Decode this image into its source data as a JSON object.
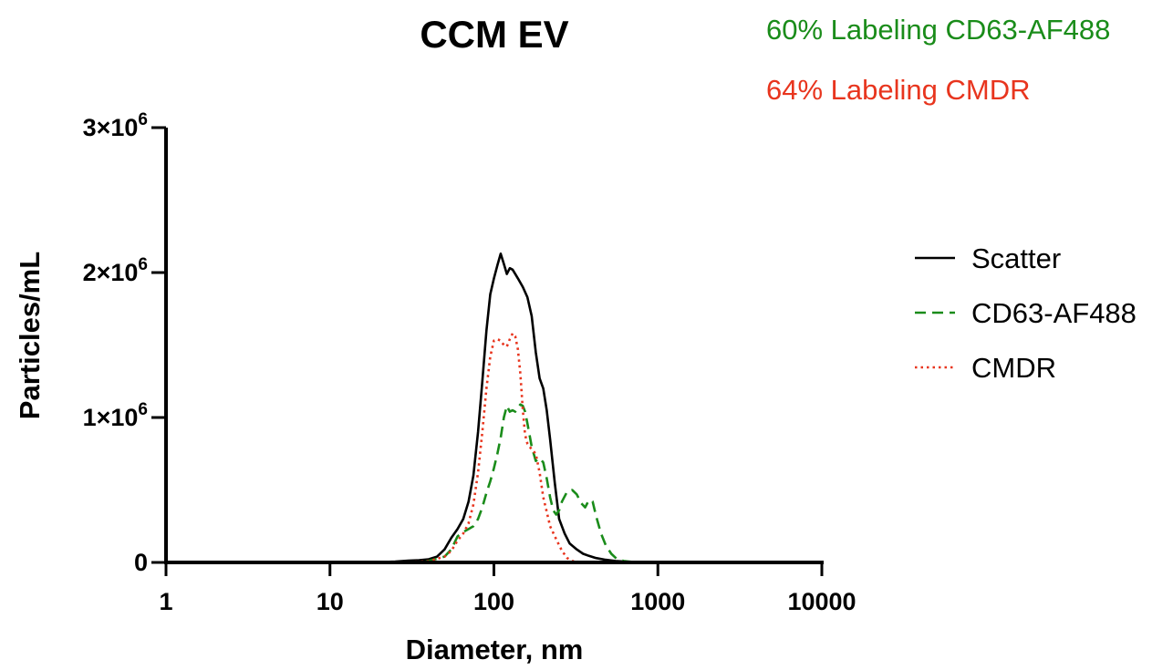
{
  "chart_data": {
    "type": "line",
    "title": "CCM EV",
    "xlabel": "Diameter, nm",
    "ylabel": "Particles/mL",
    "x_scale": "log",
    "xlim": [
      1,
      10000
    ],
    "ylim": [
      0,
      3000000
    ],
    "x_ticks": [
      {
        "value": 1,
        "label": "1"
      },
      {
        "value": 10,
        "label": "10"
      },
      {
        "value": 100,
        "label": "100"
      },
      {
        "value": 1000,
        "label": "1000"
      },
      {
        "value": 10000,
        "label": "10000"
      }
    ],
    "y_ticks": [
      {
        "value": 0,
        "label": "0",
        "sup": ""
      },
      {
        "value": 1000000,
        "label": "1×10",
        "sup": "6"
      },
      {
        "value": 2000000,
        "label": "2×10",
        "sup": "6"
      },
      {
        "value": 3000000,
        "label": "3×10",
        "sup": "6"
      }
    ],
    "annotations": [
      {
        "text": "60% Labeling CD63-AF488",
        "color": "#1a8c1a"
      },
      {
        "text": "64% Labeling CMDR",
        "color": "#e8351e"
      }
    ],
    "legend_position": "right",
    "grid": false,
    "series": [
      {
        "name": "Scatter",
        "color": "#000000",
        "dash": "solid",
        "points": [
          [
            1,
            0
          ],
          [
            12,
            0
          ],
          [
            20,
            2000
          ],
          [
            25,
            6000
          ],
          [
            30,
            12000
          ],
          [
            35,
            16000
          ],
          [
            40,
            22000
          ],
          [
            45,
            40000
          ],
          [
            50,
            90000
          ],
          [
            55,
            170000
          ],
          [
            60,
            230000
          ],
          [
            65,
            300000
          ],
          [
            70,
            420000
          ],
          [
            75,
            600000
          ],
          [
            80,
            900000
          ],
          [
            85,
            1250000
          ],
          [
            90,
            1600000
          ],
          [
            95,
            1850000
          ],
          [
            100,
            1960000
          ],
          [
            105,
            2050000
          ],
          [
            110,
            2130000
          ],
          [
            115,
            2060000
          ],
          [
            120,
            1990000
          ],
          [
            125,
            2030000
          ],
          [
            130,
            2020000
          ],
          [
            135,
            1990000
          ],
          [
            140,
            1960000
          ],
          [
            150,
            1900000
          ],
          [
            160,
            1830000
          ],
          [
            170,
            1700000
          ],
          [
            180,
            1450000
          ],
          [
            190,
            1270000
          ],
          [
            200,
            1200000
          ],
          [
            210,
            1050000
          ],
          [
            220,
            850000
          ],
          [
            235,
            550000
          ],
          [
            250,
            300000
          ],
          [
            270,
            200000
          ],
          [
            290,
            130000
          ],
          [
            320,
            90000
          ],
          [
            350,
            60000
          ],
          [
            380,
            45000
          ],
          [
            420,
            30000
          ],
          [
            480,
            18000
          ],
          [
            550,
            10000
          ],
          [
            650,
            5000
          ],
          [
            800,
            2000
          ],
          [
            1000,
            0
          ],
          [
            10000,
            0
          ]
        ]
      },
      {
        "name": "CD63-AF488",
        "color": "#1a8c1a",
        "dash": "dashed",
        "points": [
          [
            1,
            0
          ],
          [
            10,
            0
          ],
          [
            12,
            4000
          ],
          [
            14,
            0
          ],
          [
            20,
            0
          ],
          [
            25,
            4000
          ],
          [
            30,
            0
          ],
          [
            40,
            10000
          ],
          [
            50,
            40000
          ],
          [
            55,
            90000
          ],
          [
            60,
            180000
          ],
          [
            65,
            210000
          ],
          [
            70,
            230000
          ],
          [
            75,
            250000
          ],
          [
            80,
            300000
          ],
          [
            85,
            380000
          ],
          [
            90,
            480000
          ],
          [
            95,
            560000
          ],
          [
            100,
            650000
          ],
          [
            105,
            750000
          ],
          [
            110,
            860000
          ],
          [
            115,
            1000000
          ],
          [
            120,
            1080000
          ],
          [
            125,
            1040000
          ],
          [
            130,
            1050000
          ],
          [
            135,
            1040000
          ],
          [
            140,
            1070000
          ],
          [
            145,
            1090000
          ],
          [
            150,
            1080000
          ],
          [
            155,
            1040000
          ],
          [
            160,
            960000
          ],
          [
            170,
            800000
          ],
          [
            180,
            700000
          ],
          [
            190,
            720000
          ],
          [
            200,
            690000
          ],
          [
            210,
            580000
          ],
          [
            220,
            450000
          ],
          [
            230,
            360000
          ],
          [
            240,
            330000
          ],
          [
            250,
            360000
          ],
          [
            260,
            420000
          ],
          [
            280,
            490000
          ],
          [
            300,
            500000
          ],
          [
            320,
            470000
          ],
          [
            340,
            410000
          ],
          [
            360,
            380000
          ],
          [
            380,
            430000
          ],
          [
            400,
            420000
          ],
          [
            420,
            320000
          ],
          [
            450,
            200000
          ],
          [
            480,
            120000
          ],
          [
            520,
            60000
          ],
          [
            560,
            25000
          ],
          [
            620,
            10000
          ],
          [
            700,
            4000
          ],
          [
            800,
            0
          ],
          [
            10000,
            0
          ]
        ]
      },
      {
        "name": "CMDR",
        "color": "#e8351e",
        "dash": "dotted",
        "points": [
          [
            1,
            0
          ],
          [
            20,
            0
          ],
          [
            30,
            3000
          ],
          [
            40,
            8000
          ],
          [
            50,
            40000
          ],
          [
            55,
            80000
          ],
          [
            60,
            150000
          ],
          [
            65,
            200000
          ],
          [
            70,
            270000
          ],
          [
            75,
            400000
          ],
          [
            80,
            620000
          ],
          [
            85,
            900000
          ],
          [
            90,
            1200000
          ],
          [
            95,
            1420000
          ],
          [
            100,
            1530000
          ],
          [
            105,
            1540000
          ],
          [
            110,
            1530000
          ],
          [
            115,
            1500000
          ],
          [
            120,
            1490000
          ],
          [
            125,
            1540000
          ],
          [
            130,
            1580000
          ],
          [
            135,
            1560000
          ],
          [
            140,
            1470000
          ],
          [
            145,
            1300000
          ],
          [
            150,
            1050000
          ],
          [
            155,
            880000
          ],
          [
            160,
            820000
          ],
          [
            170,
            780000
          ],
          [
            180,
            750000
          ],
          [
            190,
            620000
          ],
          [
            200,
            450000
          ],
          [
            210,
            350000
          ],
          [
            220,
            250000
          ],
          [
            240,
            160000
          ],
          [
            260,
            80000
          ],
          [
            280,
            30000
          ],
          [
            300,
            10000
          ],
          [
            350,
            0
          ],
          [
            10000,
            0
          ]
        ]
      }
    ]
  }
}
